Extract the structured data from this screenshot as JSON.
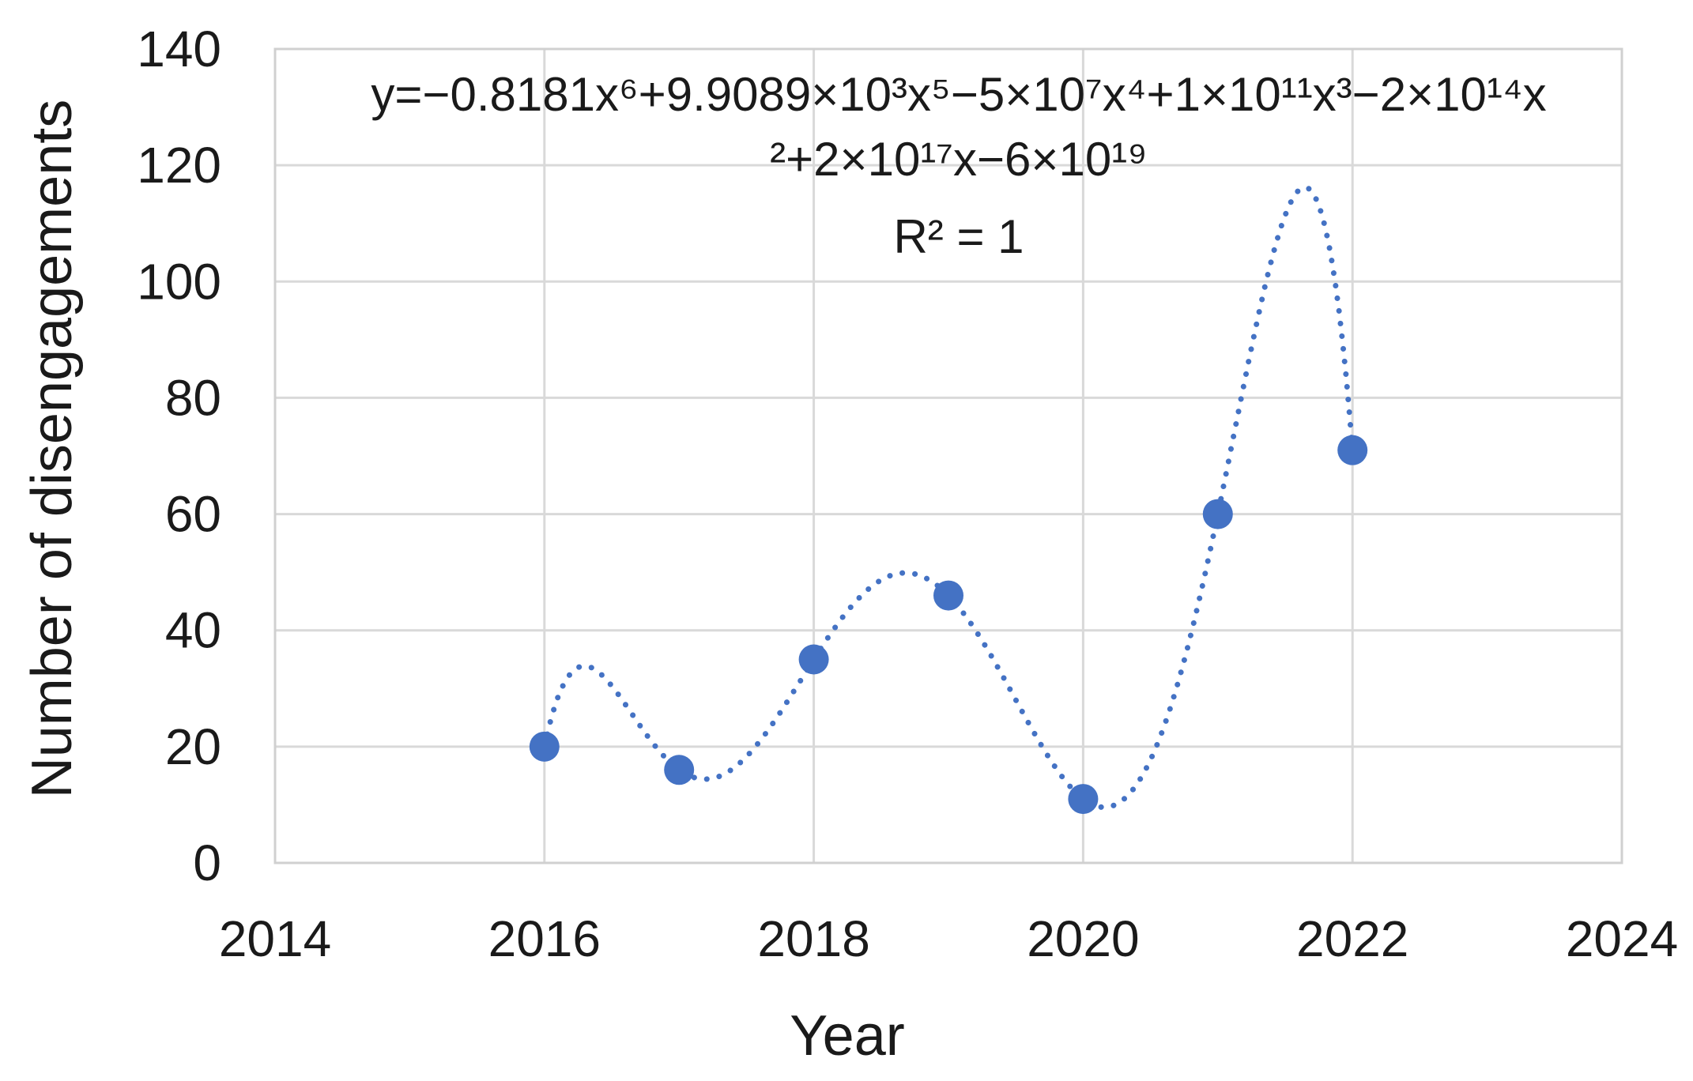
{
  "chart_data": {
    "type": "scatter",
    "title": "",
    "xlabel": "Year",
    "ylabel": "Number of disengagements",
    "xlim": [
      2014,
      2024
    ],
    "ylim": [
      0,
      140
    ],
    "x_ticks": [
      2014,
      2016,
      2018,
      2020,
      2022,
      2024
    ],
    "y_ticks": [
      0,
      20,
      40,
      60,
      80,
      100,
      120,
      140
    ],
    "grid": true,
    "legend": "none",
    "series": [
      {
        "x": [
          2016,
          2017,
          2018,
          2019,
          2020,
          2021,
          2022
        ],
        "y": [
          20,
          16,
          35,
          46,
          11,
          60,
          71
        ],
        "marker_color": "#4472C4"
      }
    ],
    "trendline": {
      "type": "polynomial",
      "order": 6,
      "style": "dotted",
      "color": "#4472C4",
      "equation_line1": "y=−0.8181x⁶+9.9089×10³x⁵−5×10⁷x⁴+1×10¹¹x³−2×10¹⁴x",
      "equation_line2": "²+2×10¹⁷x−6×10¹⁹",
      "r_squared": "R² = 1"
    }
  }
}
